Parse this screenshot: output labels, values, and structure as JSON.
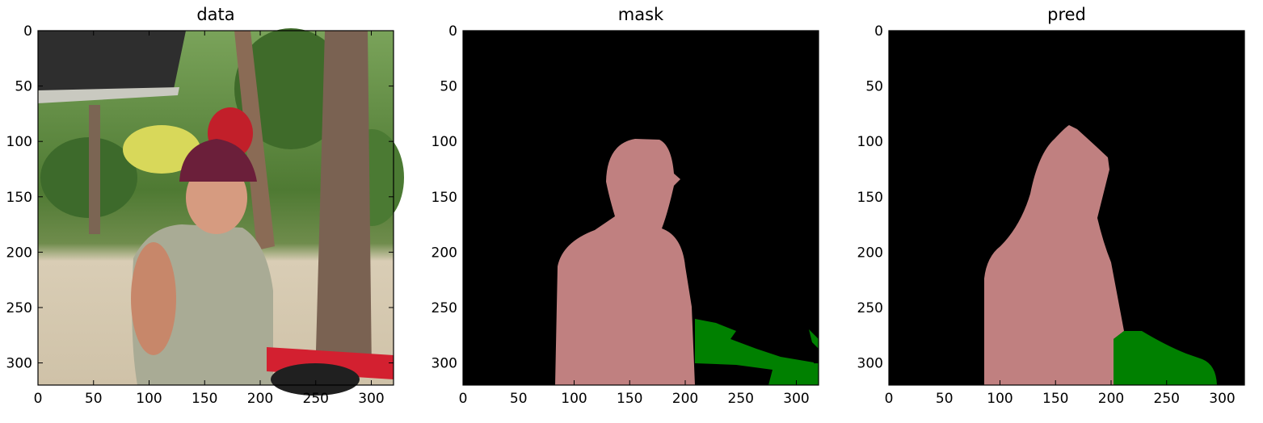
{
  "panels": [
    {
      "title": "data"
    },
    {
      "title": "mask"
    },
    {
      "title": "pred"
    }
  ],
  "axis": {
    "xticks": [
      0,
      50,
      100,
      150,
      200,
      250,
      300
    ],
    "yticks": [
      0,
      50,
      100,
      150,
      200,
      250,
      300
    ],
    "xlim": [
      0,
      320
    ],
    "ylim": [
      320,
      0
    ]
  },
  "colors": {
    "background": "#000000",
    "person": "#c08080",
    "plant": "#008000"
  }
}
